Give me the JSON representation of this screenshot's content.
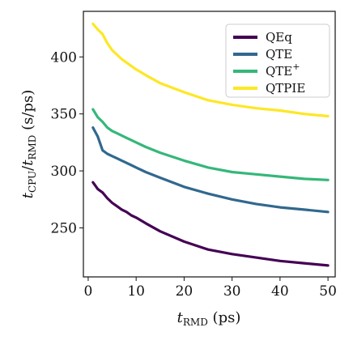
{
  "chart_data": {
    "type": "line",
    "xlabel": "t_RMD (ps)",
    "ylabel": "t_CPU/t_RMD (s/ps)",
    "xlim": [
      -1,
      51.5
    ],
    "ylim": [
      207,
      440
    ],
    "xticks": [
      0,
      10,
      20,
      30,
      40,
      50
    ],
    "yticks": [
      250,
      300,
      350,
      400
    ],
    "grid": false,
    "legend": "top-right",
    "series": [
      {
        "name": "QEq",
        "color": "#440154",
        "x": [
          1,
          2,
          3,
          4,
          5,
          6,
          7,
          8,
          9,
          10,
          12,
          15,
          20,
          25,
          30,
          35,
          40,
          45,
          50
        ],
        "y": [
          290,
          284,
          281,
          276,
          272,
          269,
          266,
          264,
          261,
          259,
          254,
          247,
          238,
          231,
          227,
          224,
          221,
          219,
          217
        ]
      },
      {
        "name": "QTE",
        "color": "#31688e",
        "x": [
          1,
          2,
          3,
          4,
          5,
          6,
          7,
          8,
          9,
          10,
          12,
          15,
          20,
          25,
          30,
          35,
          40,
          45,
          50
        ],
        "y": [
          338,
          330,
          318,
          315,
          313,
          311,
          309,
          307,
          305,
          303,
          299,
          294,
          286,
          280,
          275,
          271,
          268,
          266,
          264
        ]
      },
      {
        "name": "QTE+",
        "color": "#35b779",
        "x": [
          1,
          2,
          3,
          4,
          5,
          6,
          7,
          8,
          9,
          10,
          12,
          15,
          20,
          25,
          30,
          35,
          40,
          45,
          50
        ],
        "y": [
          354,
          347,
          343,
          338,
          335,
          333,
          331,
          329,
          327,
          325,
          321,
          316,
          309,
          303,
          299,
          297,
          295,
          293,
          292
        ]
      },
      {
        "name": "QTPIE",
        "color": "#fde725",
        "x": [
          1,
          2,
          3,
          4,
          5,
          6,
          7,
          8,
          9,
          10,
          12,
          15,
          20,
          25,
          30,
          35,
          40,
          45,
          50
        ],
        "y": [
          429,
          424,
          420,
          412,
          406,
          402,
          398,
          395,
          392,
          389,
          384,
          377,
          369,
          362,
          358,
          355,
          353,
          350,
          348
        ]
      }
    ]
  }
}
